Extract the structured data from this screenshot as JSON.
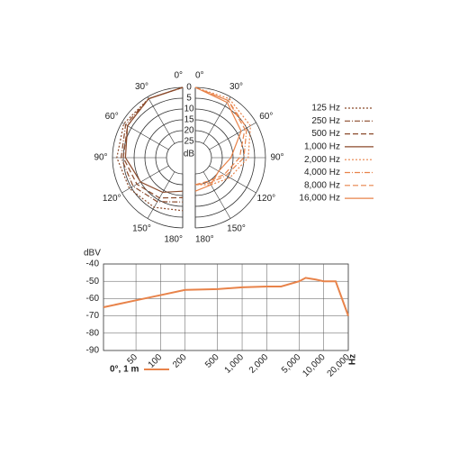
{
  "chart_data": [
    {
      "type": "polar",
      "angles": [
        {
          "value": 0,
          "label": "0°"
        },
        {
          "value": 30,
          "label": "30°"
        },
        {
          "value": 60,
          "label": "60°"
        },
        {
          "value": 90,
          "label": "90°"
        },
        {
          "value": 120,
          "label": "120°"
        },
        {
          "value": 150,
          "label": "150°"
        },
        {
          "value": 180,
          "label": "180°"
        }
      ],
      "rlim": [
        25,
        0
      ],
      "rticks": [
        0,
        5,
        10,
        15,
        20,
        25
      ],
      "rlabel": "dB",
      "series": [
        {
          "name": "125 Hz",
          "color": "#8b4a2b",
          "dash": "2,2",
          "side": "left",
          "values": [
            0,
            1,
            1,
            2,
            4,
            6,
            8
          ]
        },
        {
          "name": "250 Hz",
          "color": "#8b4a2b",
          "dash": "6,2,1,2",
          "side": "left",
          "values": [
            0,
            1,
            2,
            4,
            6,
            9,
            12
          ]
        },
        {
          "name": "500 Hz",
          "color": "#8b4a2b",
          "dash": "6,3",
          "side": "left",
          "values": [
            0,
            1,
            3,
            5,
            8,
            11,
            14
          ]
        },
        {
          "name": "1,000 Hz",
          "color": "#8b4a2b",
          "dash": "none",
          "side": "left",
          "values": [
            0,
            1,
            3,
            6,
            10,
            14,
            17
          ]
        },
        {
          "name": "2,000 Hz",
          "color": "#e8834a",
          "dash": "2,2",
          "side": "right",
          "values": [
            0,
            1,
            3,
            8,
            14,
            18,
            20
          ]
        },
        {
          "name": "4,000 Hz",
          "color": "#e8834a",
          "dash": "6,2,1,2",
          "side": "right",
          "values": [
            0,
            2,
            5,
            10,
            16,
            19,
            20
          ]
        },
        {
          "name": "8,000 Hz",
          "color": "#e8834a",
          "dash": "6,3",
          "side": "right",
          "values": [
            0,
            2,
            6,
            12,
            17,
            20,
            20
          ]
        },
        {
          "name": "16,000 Hz",
          "color": "#e8834a",
          "dash": "none",
          "side": "right",
          "values": [
            0,
            3,
            8,
            16,
            20,
            18,
            17
          ]
        }
      ]
    },
    {
      "type": "line",
      "log_x": true,
      "grid": true,
      "ylabel": "dBV",
      "xlabel": "Hz",
      "xlim": [
        20,
        20000
      ],
      "ylim": [
        -90,
        -40
      ],
      "xticks": [
        50,
        100,
        200,
        500,
        {
          "value": 1000,
          "label": "1,000"
        },
        {
          "value": 2000,
          "label": "2,000"
        },
        {
          "value": 5000,
          "label": "5,000"
        },
        {
          "value": 10000,
          "label": "10,000"
        },
        {
          "value": 20000,
          "label": "20,000"
        }
      ],
      "yticks": [
        -40,
        -50,
        -60,
        -70,
        -80,
        -90
      ],
      "x": [
        20,
        50,
        100,
        200,
        500,
        1000,
        2000,
        3000,
        5000,
        6000,
        8000,
        10000,
        12000,
        14000,
        20000
      ],
      "series": [
        {
          "name": "0°, 1 m",
          "color": "#e8834a",
          "values": [
            -65,
            -61,
            -58,
            -55,
            -54.5,
            -53.5,
            -53,
            -53,
            -50,
            -48,
            -49,
            -50,
            -50,
            -50,
            -70
          ]
        }
      ]
    }
  ]
}
